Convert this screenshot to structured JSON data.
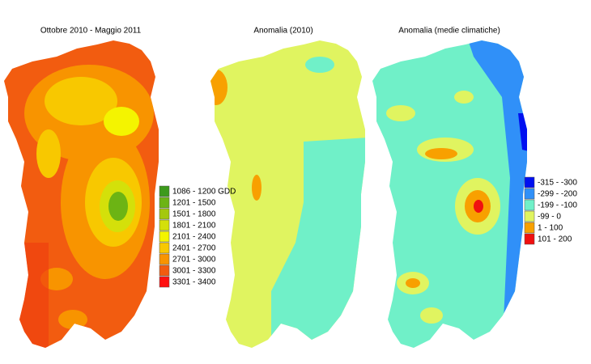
{
  "maps": [
    {
      "title": "Ottobre 2010 - Maggio 2011"
    },
    {
      "title": "Anomalia (2010)"
    },
    {
      "title": "Anomalia (medie climatiche)"
    }
  ],
  "legends": [
    {
      "items": [
        {
          "label": "1086 - 1200 GDD",
          "color": "#3c9a1c"
        },
        {
          "label": "1201 - 1500",
          "color": "#6cb414"
        },
        {
          "label": "1501 - 1800",
          "color": "#a4c80c"
        },
        {
          "label": "1801 - 2100",
          "color": "#d4e00a"
        },
        {
          "label": "2101 - 2400",
          "color": "#f4f400"
        },
        {
          "label": "2401 - 2700",
          "color": "#f8c800"
        },
        {
          "label": "2701 - 3000",
          "color": "#f89400"
        },
        {
          "label": "3001 - 3300",
          "color": "#f25c10"
        },
        {
          "label": "3301 - 3400",
          "color": "#ff1010"
        }
      ]
    },
    {
      "items": [
        {
          "label": "-315 - -300",
          "color": "#0010f0"
        },
        {
          "label": "-299 - -200",
          "color": "#3090f8"
        },
        {
          "label": "-199 - -100",
          "color": "#70f0c8"
        },
        {
          "label": "-99 - 0",
          "color": "#e0f460"
        },
        {
          "label": "1 - 100",
          "color": "#f8a000"
        },
        {
          "label": "101 - 200",
          "color": "#f01010"
        }
      ]
    }
  ]
}
